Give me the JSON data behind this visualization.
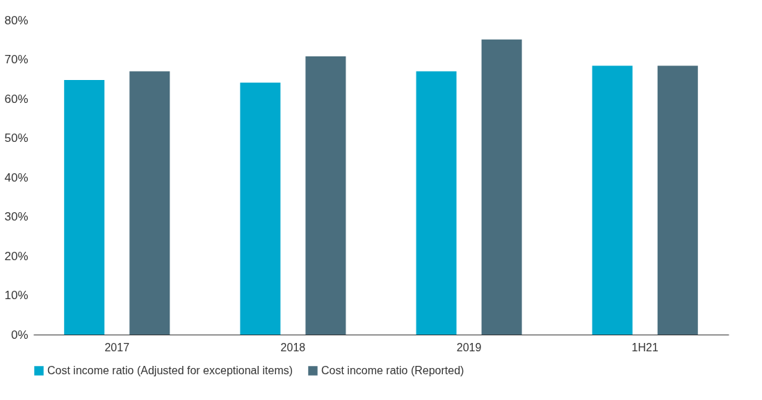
{
  "chart_data": {
    "type": "bar",
    "categories": [
      "2017",
      "2018",
      "2019",
      "1H21"
    ],
    "series": [
      {
        "name": "Cost income ratio (Adjusted for exceptional items)",
        "color": "#00a9ce",
        "values": [
          64.8,
          64.1,
          67.0,
          68.4
        ]
      },
      {
        "name": "Cost income ratio (Reported)",
        "color": "#4a6e7e",
        "values": [
          67.0,
          70.8,
          75.1,
          68.4
        ]
      }
    ],
    "ylim": [
      0,
      80
    ],
    "yticks": [
      {
        "value": 0,
        "label": "0%"
      },
      {
        "value": 10,
        "label": "10%"
      },
      {
        "value": 20,
        "label": "20%"
      },
      {
        "value": 30,
        "label": "30%"
      },
      {
        "value": 40,
        "label": "40%"
      },
      {
        "value": 50,
        "label": "50%"
      },
      {
        "value": 60,
        "label": "60%"
      },
      {
        "value": 70,
        "label": "70%"
      },
      {
        "value": 80,
        "label": "80%"
      }
    ],
    "grid": false,
    "legend": "bottom"
  }
}
